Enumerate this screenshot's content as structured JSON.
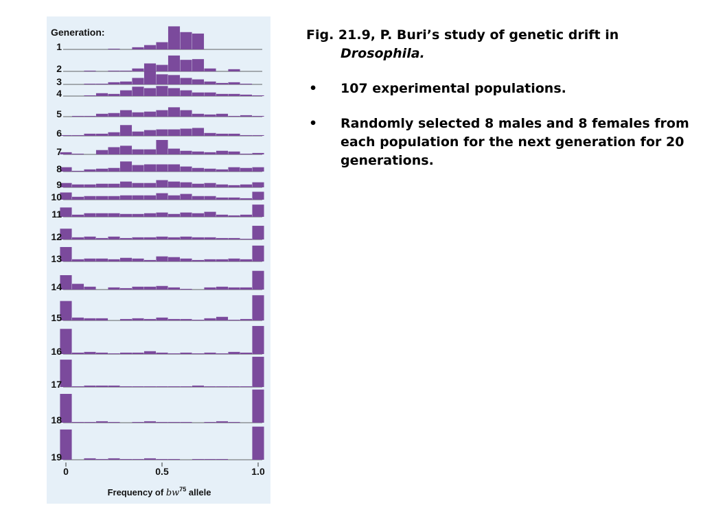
{
  "notes": {
    "title_lead": "Fig. 21.9, P. Buri’s study of genetic drift in ",
    "title_italic": "Drosophila.",
    "bullet_symbol": "•",
    "bullets": [
      "107 experimental populations.",
      "Randomly selected 8 males and 8 females from each population for the next generation for 20 generations."
    ]
  },
  "chart_data": {
    "type": "bar",
    "ylabel": "Generation:",
    "xlabel": "Frequency of bw75 allele",
    "xlabel_parts": {
      "prefix": "Frequency of ",
      "symbol": "bw",
      "superscript": "75",
      "suffix": " allele"
    },
    "x": [
      0,
      0.0625,
      0.125,
      0.1875,
      0.25,
      0.3125,
      0.375,
      0.4375,
      0.5,
      0.5625,
      0.625,
      0.6875,
      0.75,
      0.8125,
      0.875,
      0.9375,
      1
    ],
    "xlim": [
      0,
      1
    ],
    "x_ticks": [
      0,
      0.5,
      1.0
    ],
    "x_tick_labels": [
      "0",
      "0.5",
      "1.0"
    ],
    "bar_color": "#7b4a9c",
    "series": [
      {
        "name": "1",
        "values": [
          0,
          0,
          0,
          0,
          1,
          0,
          3,
          6,
          10,
          32,
          24,
          22,
          0,
          0,
          0,
          0,
          0
        ]
      },
      {
        "name": "2",
        "values": [
          0,
          0,
          1,
          0,
          1,
          1,
          4,
          11,
          9,
          22,
          16,
          17,
          4,
          0,
          3,
          0,
          0
        ]
      },
      {
        "name": "3",
        "values": [
          0,
          0,
          1,
          1,
          3,
          4,
          9,
          18,
          14,
          13,
          9,
          7,
          4,
          2,
          3,
          1,
          0
        ]
      },
      {
        "name": "4",
        "values": [
          0,
          0,
          1,
          4,
          3,
          8,
          13,
          11,
          14,
          11,
          8,
          5,
          5,
          3,
          3,
          2,
          1
        ]
      },
      {
        "name": "5",
        "values": [
          0,
          1,
          1,
          4,
          5,
          9,
          6,
          7,
          9,
          13,
          9,
          4,
          3,
          4,
          1,
          2,
          1
        ]
      },
      {
        "name": "6",
        "values": [
          1,
          1,
          3,
          3,
          5,
          15,
          6,
          8,
          9,
          9,
          10,
          11,
          4,
          3,
          3,
          1,
          1
        ]
      },
      {
        "name": "7",
        "values": [
          3,
          1,
          0,
          6,
          10,
          12,
          7,
          7,
          20,
          8,
          5,
          4,
          3,
          5,
          4,
          1,
          2
        ]
      },
      {
        "name": "8",
        "values": [
          6,
          1,
          3,
          4,
          5,
          14,
          9,
          10,
          10,
          10,
          7,
          5,
          4,
          3,
          6,
          5,
          6
        ]
      },
      {
        "name": "9",
        "values": [
          6,
          4,
          4,
          5,
          5,
          8,
          6,
          6,
          10,
          8,
          7,
          5,
          6,
          4,
          3,
          4,
          7
        ]
      },
      {
        "name": "10",
        "values": [
          10,
          4,
          5,
          5,
          5,
          6,
          6,
          6,
          9,
          6,
          8,
          5,
          5,
          3,
          3,
          2,
          11
        ]
      },
      {
        "name": "11",
        "values": [
          13,
          3,
          5,
          5,
          5,
          4,
          4,
          5,
          6,
          4,
          6,
          5,
          7,
          3,
          2,
          3,
          17
        ]
      },
      {
        "name": "12",
        "values": [
          15,
          3,
          4,
          2,
          4,
          2,
          3,
          3,
          4,
          3,
          4,
          3,
          3,
          2,
          2,
          1,
          19
        ]
      },
      {
        "name": "13",
        "values": [
          20,
          3,
          4,
          4,
          3,
          5,
          4,
          2,
          7,
          6,
          4,
          2,
          3,
          3,
          4,
          3,
          22
        ]
      },
      {
        "name": "14",
        "values": [
          20,
          8,
          4,
          0,
          3,
          2,
          4,
          4,
          5,
          3,
          1,
          0,
          3,
          4,
          3,
          3,
          26
        ]
      },
      {
        "name": "15",
        "values": [
          27,
          4,
          3,
          3,
          0,
          2,
          3,
          2,
          4,
          2,
          2,
          1,
          3,
          5,
          1,
          2,
          35
        ]
      },
      {
        "name": "16",
        "values": [
          35,
          2,
          3,
          2,
          1,
          2,
          2,
          4,
          2,
          1,
          2,
          1,
          2,
          1,
          3,
          2,
          39
        ]
      },
      {
        "name": "17",
        "values": [
          38,
          1,
          2,
          2,
          2,
          1,
          1,
          1,
          1,
          1,
          1,
          2,
          1,
          1,
          1,
          1,
          42
        ]
      },
      {
        "name": "18",
        "values": [
          40,
          1,
          1,
          2,
          1,
          0,
          1,
          2,
          1,
          1,
          1,
          0,
          1,
          2,
          1,
          0,
          46
        ]
      },
      {
        "name": "19",
        "values": [
          42,
          0,
          2,
          1,
          2,
          1,
          1,
          2,
          1,
          1,
          0,
          1,
          1,
          1,
          0,
          0,
          46
        ]
      }
    ]
  }
}
